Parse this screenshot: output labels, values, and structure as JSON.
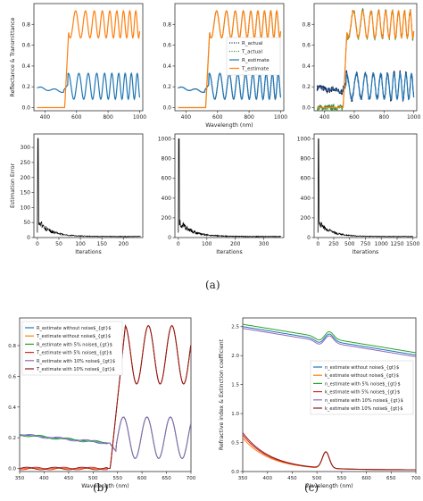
{
  "colors": {
    "blue": "#1f77b4",
    "orange": "#ff7f0e",
    "green": "#2ca02c",
    "red": "#d62728",
    "purple": "#9467bd",
    "darkred": "#8c1c1c",
    "navy": "#1a1a4a",
    "dottedgreen": "#3a8a3a",
    "black": "#000000"
  },
  "labels": {
    "a": "(a)",
    "b": "(b)",
    "c": "(c)"
  },
  "chart_data": [
    {
      "id": "a_top_1",
      "type": "line",
      "ylabel": "Reflectance & Transmittance",
      "xlim": [
        330,
        1020
      ],
      "ylim": [
        -0.03,
        1.0
      ],
      "xticks": [
        400,
        600,
        800,
        1000
      ],
      "yticks": [
        0.0,
        0.2,
        0.4,
        0.6,
        0.8
      ],
      "series": [
        {
          "name": "R_estimate",
          "color_key": "blue",
          "kind": "R"
        },
        {
          "name": "T_estimate",
          "color_key": "orange",
          "kind": "T"
        }
      ]
    },
    {
      "id": "a_top_2",
      "type": "line",
      "xlabel": "Wavelength (nm)",
      "xlim": [
        330,
        1020
      ],
      "ylim": [
        -0.03,
        1.0
      ],
      "xticks": [
        400,
        600,
        800,
        1000
      ],
      "yticks": [
        0.0,
        0.2,
        0.4,
        0.6,
        0.8
      ],
      "legend_position": "center-right",
      "legend": [
        "R_actual",
        "T_actual",
        "R_estimate",
        "T_estimate"
      ],
      "series": [
        {
          "name": "R_actual",
          "color_key": "navy",
          "kind": "R",
          "style": "dotted"
        },
        {
          "name": "T_actual",
          "color_key": "dottedgreen",
          "kind": "T",
          "style": "dotted"
        },
        {
          "name": "R_estimate",
          "color_key": "blue",
          "kind": "R"
        },
        {
          "name": "T_estimate",
          "color_key": "orange",
          "kind": "T"
        }
      ]
    },
    {
      "id": "a_top_3",
      "type": "line",
      "xlim": [
        330,
        1020
      ],
      "ylim": [
        -0.03,
        1.0
      ],
      "xticks": [
        400,
        600,
        800,
        1000
      ],
      "yticks": [
        0.0,
        0.2,
        0.4,
        0.6,
        0.8
      ],
      "noisy": true,
      "series": [
        {
          "name": "R_actual",
          "color_key": "navy",
          "kind": "R",
          "style": "noisy"
        },
        {
          "name": "T_actual",
          "color_key": "dottedgreen",
          "kind": "T",
          "style": "noisy"
        },
        {
          "name": "R_estimate",
          "color_key": "blue",
          "kind": "R"
        },
        {
          "name": "T_estimate",
          "color_key": "orange",
          "kind": "T"
        }
      ]
    },
    {
      "id": "a_bot_1",
      "type": "line",
      "ylabel": "Estimation Error",
      "xlabel": "Iterations",
      "xlim": [
        -8,
        245
      ],
      "ylim": [
        0,
        345
      ],
      "xticks": [
        0,
        50,
        100,
        150,
        200
      ],
      "yticks": [
        0,
        50,
        100,
        150,
        200,
        250,
        300
      ],
      "series": [
        {
          "name": "error",
          "color_key": "black",
          "peak": 330,
          "n": 240
        }
      ]
    },
    {
      "id": "a_bot_2",
      "type": "line",
      "xlabel": "Iterations",
      "xlim": [
        -12,
        370
      ],
      "ylim": [
        0,
        1050
      ],
      "xticks": [
        0,
        100,
        200,
        300
      ],
      "yticks": [
        0,
        200,
        400,
        600,
        800,
        1000
      ],
      "series": [
        {
          "name": "error",
          "color_key": "black",
          "peak": 1000,
          "n": 360
        }
      ]
    },
    {
      "id": "a_bot_3",
      "type": "line",
      "xlabel": "Iterations",
      "xlim": [
        -60,
        1560
      ],
      "ylim": [
        0,
        1050
      ],
      "xticks": [
        0,
        250,
        500,
        750,
        1000,
        1250,
        1500
      ],
      "yticks": [
        0,
        200,
        400,
        600,
        800,
        1000
      ],
      "series": [
        {
          "name": "error",
          "color_key": "black",
          "peak": 1000,
          "n": 1500
        }
      ]
    },
    {
      "id": "b",
      "type": "line",
      "xlabel": "Wavelength (nm)",
      "ylabel": "Reflectance & Transmittance",
      "xlim": [
        350,
        700
      ],
      "ylim": [
        -0.02,
        0.98
      ],
      "xticks": [
        350,
        400,
        450,
        500,
        550,
        600,
        650,
        700
      ],
      "yticks": [
        0.0,
        0.2,
        0.4,
        0.6,
        0.8
      ],
      "legend_position": "top-left",
      "legend": [
        "R_estimate without noise$_{gt}$",
        "T_estimate without noise$_{gt}$",
        "R_estimate with 5% noise$_{gt}$",
        "T_estimate with 5% noise$_{gt}$",
        "R_estimate with 10% noise$_{gt}$",
        "T_estimate with 10% noise$_{gt}$"
      ],
      "series": [
        {
          "color_key": "blue",
          "kind": "R"
        },
        {
          "color_key": "orange",
          "kind": "T"
        },
        {
          "color_key": "green",
          "kind": "R"
        },
        {
          "color_key": "red",
          "kind": "T"
        },
        {
          "color_key": "purple",
          "kind": "R"
        },
        {
          "color_key": "darkred",
          "kind": "T"
        }
      ]
    },
    {
      "id": "c",
      "type": "line",
      "xlabel": "Wavelength (nm)",
      "ylabel": "Refractive index & Extinction coefficient",
      "xlim": [
        350,
        700
      ],
      "ylim": [
        0.0,
        2.65
      ],
      "xticks": [
        350,
        400,
        450,
        500,
        550,
        600,
        650,
        700
      ],
      "yticks": [
        0.0,
        0.5,
        1.0,
        1.5,
        2.0,
        2.5
      ],
      "legend_position": "center-right",
      "legend": [
        "n_estimate without noise$_{gt}$",
        "k_estimate without noise$_{gt}$",
        "n_estimate with 5% noise$_{gt}$",
        "k_estimate with 5% noise$_{gt}$",
        "n_estimate with 10% noise$_{gt}$",
        "k_estimate with 10% noise$_{gt}$"
      ],
      "series": [
        {
          "color_key": "blue",
          "kind": "n"
        },
        {
          "color_key": "orange",
          "kind": "k"
        },
        {
          "color_key": "green",
          "kind": "n"
        },
        {
          "color_key": "red",
          "kind": "k"
        },
        {
          "color_key": "purple",
          "kind": "n"
        },
        {
          "color_key": "darkred",
          "kind": "k"
        }
      ]
    }
  ]
}
